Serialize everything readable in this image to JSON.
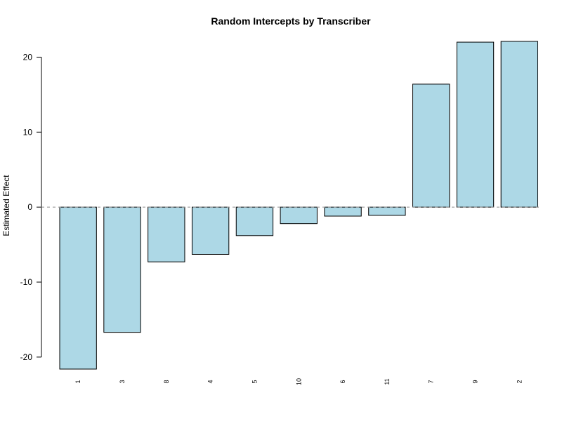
{
  "chart_data": {
    "type": "bar",
    "title": "Random Intercepts by Transcriber",
    "xlabel": "",
    "ylabel": "Estimated Effect",
    "categories": [
      "1",
      "3",
      "8",
      "4",
      "5",
      "10",
      "6",
      "11",
      "7",
      "9",
      "2"
    ],
    "values": [
      -21.6,
      -16.7,
      -7.3,
      -6.3,
      -3.8,
      -2.2,
      -1.2,
      -1.1,
      16.4,
      22.0,
      22.1
    ],
    "ylim": [
      -21.6,
      22.1
    ],
    "yticks": [
      -20,
      -10,
      0,
      10,
      20
    ],
    "bar_color": "#add8e6",
    "bar_border": "#000000",
    "reference_line": {
      "y": 0,
      "style": "dashed",
      "color": "#999999"
    },
    "grid": false,
    "legend": "none"
  }
}
